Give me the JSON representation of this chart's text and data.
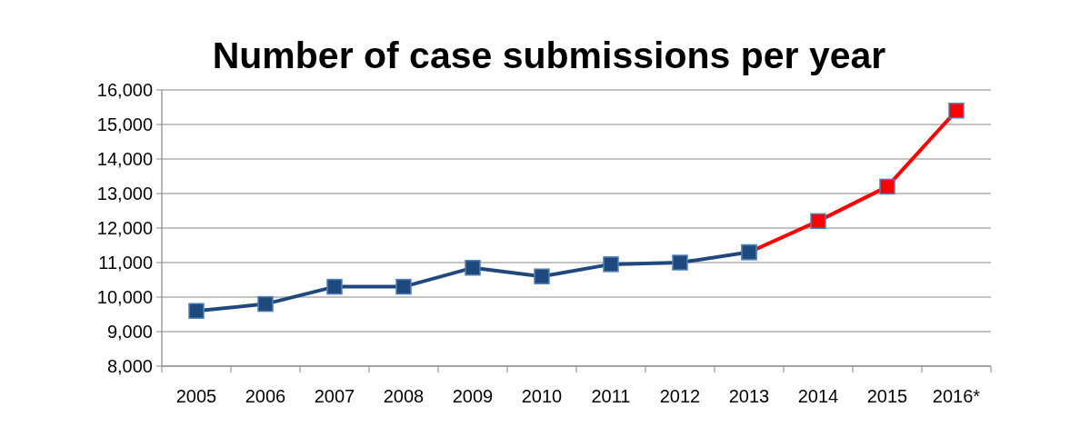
{
  "chart_data": {
    "type": "line",
    "title": "Number of case submissions per year",
    "categories": [
      "2005",
      "2006",
      "2007",
      "2008",
      "2009",
      "2010",
      "2011",
      "2012",
      "2013",
      "2014",
      "2015",
      "2016*"
    ],
    "series": [
      {
        "color": "#1f497d",
        "values": [
          9600,
          9800,
          10300,
          10300,
          10850,
          10600,
          10950,
          11000,
          11300,
          null,
          null,
          null
        ]
      },
      {
        "color": "#ff0000",
        "values": [
          null,
          null,
          null,
          null,
          null,
          null,
          null,
          null,
          11300,
          12200,
          13200,
          15400
        ]
      }
    ],
    "ylim": [
      8000,
      16000
    ],
    "yticks": [
      {
        "value": 8000,
        "label": "8,000"
      },
      {
        "value": 9000,
        "label": "9,000"
      },
      {
        "value": 10000,
        "label": "10,000"
      },
      {
        "value": 11000,
        "label": "11,000"
      },
      {
        "value": 12000,
        "label": "12,000"
      },
      {
        "value": 13000,
        "label": "13,000"
      },
      {
        "value": 14000,
        "label": "14,000"
      },
      {
        "value": 15000,
        "label": "15,000"
      },
      {
        "value": 16000,
        "label": "16,000"
      }
    ],
    "grid": "y",
    "marker": "square",
    "line_style": "solid"
  }
}
